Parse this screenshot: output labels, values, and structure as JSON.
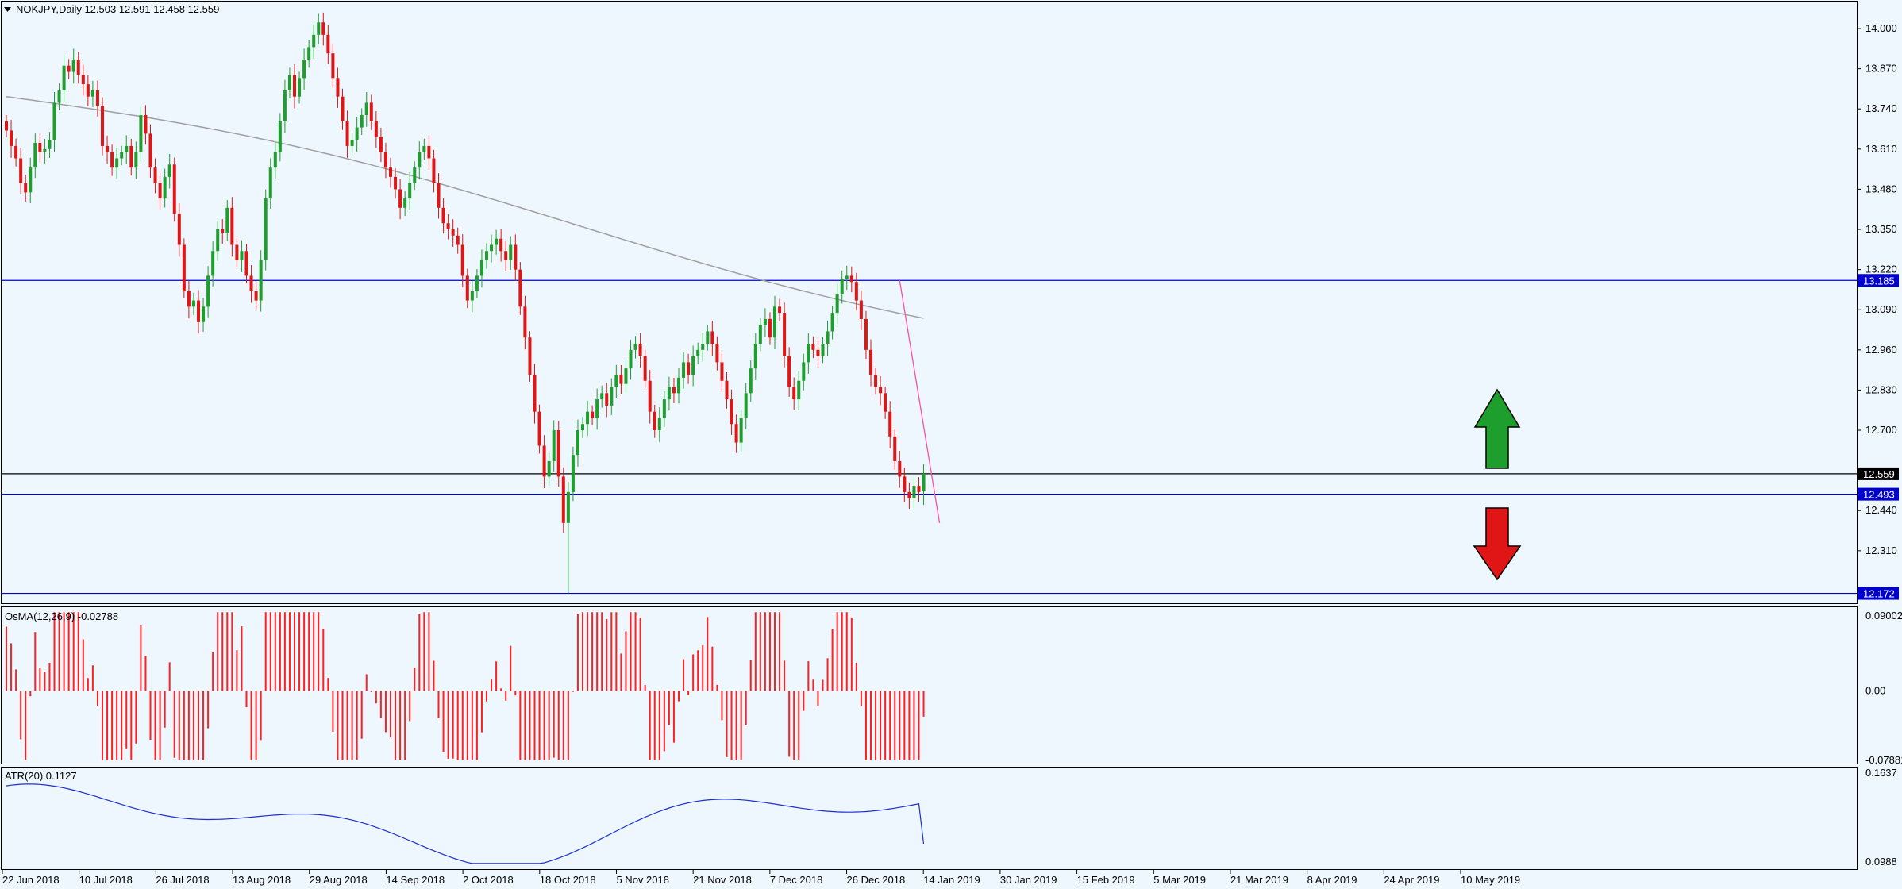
{
  "colors": {
    "background": "#eef6fe",
    "frame": "#000000",
    "bull_candle": "#1e9e2c",
    "bear_candle": "#e01515",
    "moving_average": "#a0a0a0",
    "support_resistance": "#0000cc",
    "current_price_line": "#000000",
    "trendline": "#ff4fa0",
    "osma_bars": "#ff2020",
    "atr_line": "#1c2fd0",
    "arrow_up": "#1e9e2c",
    "arrow_down": "#e01515"
  },
  "main_panel": {
    "header": "NOKJPY,Daily  12.503 12.591 12.458 12.559",
    "menu_icon": "triangle-down-icon",
    "price_ticks": [
      "14.000",
      "13.870",
      "13.740",
      "13.610",
      "13.480",
      "13.350",
      "13.220",
      "13.090",
      "12.960",
      "12.830",
      "12.700",
      "12.440",
      "12.310"
    ],
    "price_labels": [
      {
        "value": "13.185",
        "style": "blue"
      },
      {
        "value": "12.559",
        "style": "black"
      },
      {
        "value": "12.493",
        "style": "blue"
      },
      {
        "value": "12.172",
        "style": "blue"
      }
    ]
  },
  "osma_panel": {
    "header": "OsMA(12,26,9) -0.02788",
    "ticks": [
      "0.09002",
      "0.00",
      "-0.07881"
    ]
  },
  "atr_panel": {
    "header": "ATR(20) 0.1127",
    "ticks": [
      "0.1637",
      "0.0988"
    ]
  },
  "time_axis": [
    "22 Jun 2018",
    "10 Jul 2018",
    "26 Jul 2018",
    "13 Aug 2018",
    "29 Aug 2018",
    "14 Sep 2018",
    "2 Oct 2018",
    "18 Oct 2018",
    "5 Nov 2018",
    "21 Nov 2018",
    "7 Dec 2018",
    "26 Dec 2018",
    "14 Jan 2019",
    "30 Jan 2019",
    "15 Feb 2019",
    "5 Mar 2019",
    "21 Mar 2019",
    "8 Apr 2019",
    "24 Apr 2019",
    "10 May 2019"
  ],
  "chart_data": {
    "type": "candlestick",
    "symbol": "NOKJPY",
    "timeframe": "Daily",
    "last_bar": {
      "open": 12.503,
      "high": 12.591,
      "low": 12.458,
      "close": 12.559
    },
    "price_range": [
      12.14,
      14.09
    ],
    "horizontal_levels": [
      13.185,
      12.559,
      12.493,
      12.172
    ],
    "closes": [
      13.67,
      13.62,
      13.58,
      13.5,
      13.47,
      13.55,
      13.63,
      13.6,
      13.61,
      13.64,
      13.76,
      13.8,
      13.88,
      13.86,
      13.9,
      13.85,
      13.82,
      13.78,
      13.8,
      13.75,
      13.62,
      13.6,
      13.55,
      13.58,
      13.6,
      13.62,
      13.55,
      13.6,
      13.72,
      13.66,
      13.55,
      13.5,
      13.45,
      13.52,
      13.56,
      13.4,
      13.3,
      13.15,
      13.1,
      13.12,
      13.05,
      13.1,
      13.2,
      13.28,
      13.35,
      13.34,
      13.42,
      13.3,
      13.25,
      13.28,
      13.2,
      13.15,
      13.12,
      13.25,
      13.45,
      13.55,
      13.6,
      13.7,
      13.8,
      13.85,
      13.78,
      13.84,
      13.9,
      13.94,
      13.98,
      14.02,
      13.98,
      13.92,
      13.84,
      13.78,
      13.7,
      13.62,
      13.64,
      13.68,
      13.72,
      13.76,
      13.7,
      13.65,
      13.6,
      13.55,
      13.52,
      13.48,
      13.42,
      13.45,
      13.5,
      13.55,
      13.6,
      13.62,
      13.58,
      13.5,
      13.42,
      13.37,
      13.35,
      13.33,
      13.3,
      13.2,
      13.12,
      13.15,
      13.2,
      13.25,
      13.28,
      13.3,
      13.32,
      13.28,
      13.25,
      13.3,
      13.22,
      13.1,
      13.0,
      12.88,
      12.76,
      12.65,
      12.55,
      12.6,
      12.7,
      12.55,
      12.4,
      12.5,
      12.62,
      12.7,
      12.72,
      12.76,
      12.74,
      12.8,
      12.82,
      12.78,
      12.84,
      12.88,
      12.85,
      12.9,
      12.96,
      12.98,
      12.94,
      12.86,
      12.76,
      12.7,
      12.74,
      12.8,
      12.84,
      12.82,
      12.87,
      12.92,
      12.88,
      12.94,
      12.96,
      12.98,
      13.02,
      12.98,
      12.92,
      12.86,
      12.8,
      12.72,
      12.66,
      12.74,
      12.82,
      12.9,
      12.98,
      13.04,
      13.06,
      13.0,
      13.1,
      13.08,
      12.94,
      12.84,
      12.8,
      12.86,
      12.92,
      12.98,
      12.96,
      12.94,
      12.98,
      13.02,
      13.08,
      13.14,
      13.19,
      13.2,
      13.18,
      13.12,
      13.06,
      12.96,
      12.88,
      12.84,
      12.82,
      12.76,
      12.68,
      12.6,
      12.55,
      12.5,
      12.48,
      12.52,
      12.5,
      12.559
    ],
    "moving_average": {
      "start": 13.78,
      "end": 13.11
    },
    "trendline": {
      "from_price": 13.185,
      "to_price": 12.4
    },
    "arrows": [
      "up",
      "down"
    ],
    "osma": {
      "current": -0.02788,
      "range": [
        -0.07881,
        0.09002
      ]
    },
    "atr": {
      "period": 20,
      "current": 0.1127,
      "range": [
        0.0988,
        0.1637
      ]
    }
  }
}
